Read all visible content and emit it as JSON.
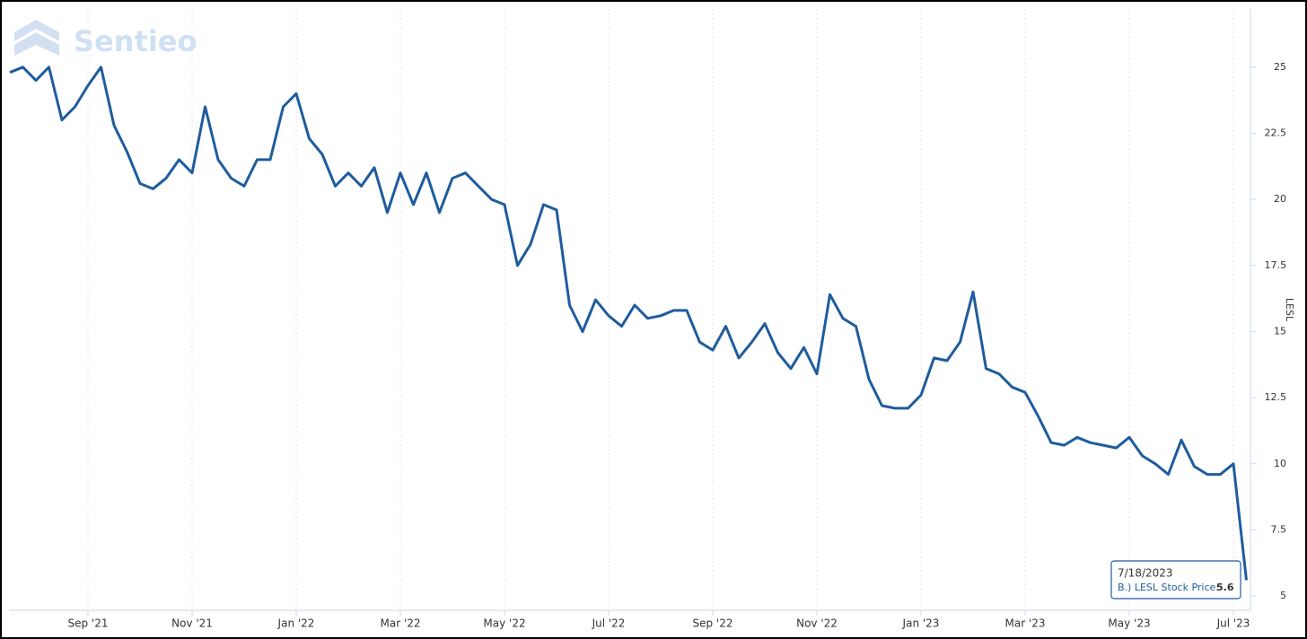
{
  "chart_data": {
    "type": "line",
    "watermark": "Sentieo",
    "y_axis_label": "LESL",
    "categories": [
      null,
      null,
      null,
      null,
      null,
      null,
      "Sep '21",
      null,
      null,
      null,
      null,
      null,
      null,
      null,
      "Nov '21",
      null,
      null,
      null,
      null,
      null,
      null,
      null,
      "Jan '22",
      null,
      null,
      null,
      null,
      null,
      null,
      null,
      "Mar '22",
      null,
      null,
      null,
      null,
      null,
      null,
      null,
      "May '22",
      null,
      null,
      null,
      null,
      null,
      null,
      null,
      "Jul '22",
      null,
      null,
      null,
      null,
      null,
      null,
      null,
      "Sep '22",
      null,
      null,
      null,
      null,
      null,
      null,
      null,
      "Nov '22",
      null,
      null,
      null,
      null,
      null,
      null,
      null,
      "Jan '23",
      null,
      null,
      null,
      null,
      null,
      null,
      null,
      "Mar '23",
      null,
      null,
      null,
      null,
      null,
      null,
      null,
      "May '23",
      null,
      null,
      null,
      null,
      null,
      null,
      null,
      "Jul '23",
      null
    ],
    "series": [
      {
        "name": "B.) LESL Stock Price",
        "color": "#1f5c9e",
        "values": [
          24.8,
          25.0,
          24.5,
          25.0,
          23.0,
          23.5,
          24.3,
          25.0,
          22.8,
          21.8,
          20.6,
          20.4,
          20.8,
          21.5,
          21.0,
          23.5,
          21.5,
          20.8,
          20.5,
          21.5,
          21.5,
          23.5,
          24.0,
          22.3,
          21.7,
          20.5,
          21.0,
          20.5,
          21.2,
          19.5,
          21.0,
          19.8,
          21.0,
          19.5,
          20.8,
          21.0,
          20.5,
          20.0,
          19.8,
          17.5,
          18.3,
          19.8,
          19.6,
          16.0,
          15.0,
          16.2,
          15.6,
          15.2,
          16.0,
          15.5,
          15.6,
          15.8,
          15.8,
          14.6,
          14.3,
          15.2,
          14.0,
          14.6,
          15.3,
          14.2,
          13.6,
          14.4,
          13.4,
          16.4,
          15.5,
          15.2,
          13.2,
          12.2,
          12.1,
          12.1,
          12.6,
          14.0,
          13.9,
          14.6,
          16.5,
          13.6,
          13.4,
          12.9,
          12.7,
          11.8,
          10.8,
          10.7,
          11.0,
          10.8,
          10.7,
          10.6,
          11.0,
          10.3,
          10.0,
          9.6,
          10.9,
          9.9,
          9.6,
          9.6,
          10.0,
          5.6
        ]
      }
    ],
    "ylim": [
      4.46,
      27.2
    ],
    "yticks": [
      5,
      7.5,
      10,
      12.5,
      15,
      17.5,
      20,
      22.5,
      25
    ],
    "grid": true,
    "tooltip": {
      "date": "7/18/2023",
      "label": "B.) LESL Stock Price:",
      "value": 5.6
    }
  }
}
